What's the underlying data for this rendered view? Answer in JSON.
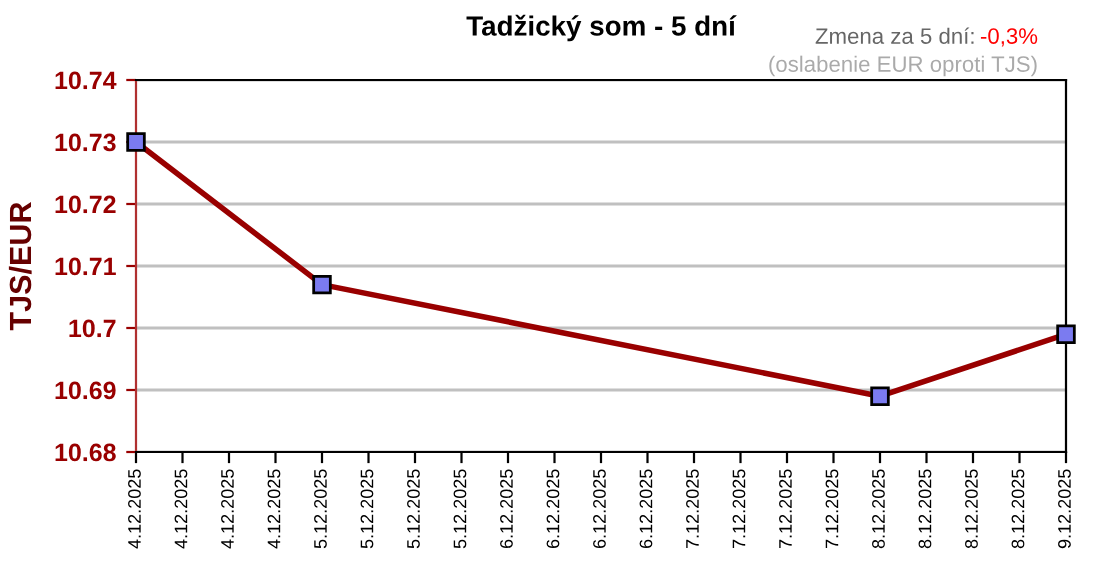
{
  "chart_data": {
    "type": "line",
    "title": "Tadžický som - 5 dní",
    "ylabel": "TJS/EUR",
    "annotations": [
      "Zmena za 5 dní:",
      "-0,3%",
      "(oslabenie EUR oproti TJS)"
    ],
    "x": [
      "2025-12-04T00:00",
      "2025-12-05T00:00",
      "2025-12-08T00:00",
      "2025-12-09T00:00"
    ],
    "series": [
      {
        "color": "#990000",
        "values": [
          10.73,
          10.707,
          10.689,
          10.699
        ]
      }
    ],
    "marker": "square",
    "line_style": "solid",
    "grid": "y",
    "xlim": [
      "2025-12-04T00:00",
      "2025-12-09T00:00"
    ],
    "xticks": [
      {
        "value": "2025-12-04T00:00",
        "label": "4.12.2025"
      },
      {
        "value": "2025-12-04T06:00",
        "label": "4.12.2025"
      },
      {
        "value": "2025-12-04T12:00",
        "label": "4.12.2025"
      },
      {
        "value": "2025-12-04T18:00",
        "label": "4.12.2025"
      },
      {
        "value": "2025-12-05T00:00",
        "label": "5.12.2025"
      },
      {
        "value": "2025-12-05T06:00",
        "label": "5.12.2025"
      },
      {
        "value": "2025-12-05T12:00",
        "label": "5.12.2025"
      },
      {
        "value": "2025-12-05T18:00",
        "label": "5.12.2025"
      },
      {
        "value": "2025-12-06T00:00",
        "label": "6.12.2025"
      },
      {
        "value": "2025-12-06T06:00",
        "label": "6.12.2025"
      },
      {
        "value": "2025-12-06T12:00",
        "label": "6.12.2025"
      },
      {
        "value": "2025-12-06T18:00",
        "label": "6.12.2025"
      },
      {
        "value": "2025-12-07T00:00",
        "label": "7.12.2025"
      },
      {
        "value": "2025-12-07T06:00",
        "label": "7.12.2025"
      },
      {
        "value": "2025-12-07T12:00",
        "label": "7.12.2025"
      },
      {
        "value": "2025-12-07T18:00",
        "label": "7.12.2025"
      },
      {
        "value": "2025-12-08T00:00",
        "label": "8.12.2025"
      },
      {
        "value": "2025-12-08T06:00",
        "label": "8.12.2025"
      },
      {
        "value": "2025-12-08T12:00",
        "label": "8.12.2025"
      },
      {
        "value": "2025-12-08T18:00",
        "label": "8.12.2025"
      },
      {
        "value": "2025-12-09T00:00",
        "label": "9.12.2025"
      }
    ],
    "ylim": [
      10.68,
      10.74
    ],
    "yticks": [
      {
        "value": 10.68,
        "label": "10.68"
      },
      {
        "value": 10.69,
        "label": "10.69"
      },
      {
        "value": 10.7,
        "label": "10.7"
      },
      {
        "value": 10.71,
        "label": "10.71"
      },
      {
        "value": 10.72,
        "label": "10.72"
      },
      {
        "value": 10.73,
        "label": "10.73"
      },
      {
        "value": 10.74,
        "label": "10.74"
      }
    ]
  }
}
